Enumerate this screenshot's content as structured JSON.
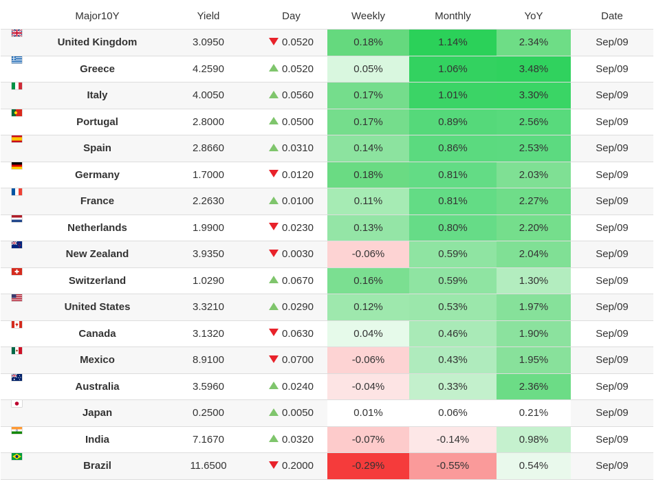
{
  "table": {
    "headers": {
      "name": "Major10Y",
      "yield": "Yield",
      "day": "Day",
      "weekly": "Weekly",
      "monthly": "Monthly",
      "yoy": "YoY",
      "date": "Date"
    },
    "rows": [
      {
        "flag": "gb",
        "name": "United Kingdom",
        "yield": "3.0950",
        "day_dir": "down",
        "day": "0.0520",
        "weekly": "0.18%",
        "monthly": "1.14%",
        "yoy": "2.34%",
        "date": "Sep/09",
        "colors": {
          "weekly": "#65d97e",
          "monthly": "#2bd159",
          "yoy": "#6edd86"
        }
      },
      {
        "flag": "gr",
        "name": "Greece",
        "yield": "4.2590",
        "day_dir": "up",
        "day": "0.0520",
        "weekly": "0.05%",
        "monthly": "1.06%",
        "yoy": "3.48%",
        "date": "Sep/09",
        "colors": {
          "weekly": "#d9f7df",
          "monthly": "#33d260",
          "yoy": "#30d25e"
        }
      },
      {
        "flag": "it",
        "name": "Italy",
        "yield": "4.0050",
        "day_dir": "up",
        "day": "0.0560",
        "weekly": "0.17%",
        "monthly": "1.01%",
        "yoy": "3.30%",
        "date": "Sep/09",
        "colors": {
          "weekly": "#75dd8c",
          "monthly": "#3bd466",
          "yoy": "#3ad565"
        }
      },
      {
        "flag": "pt",
        "name": "Portugal",
        "yield": "2.8000",
        "day_dir": "up",
        "day": "0.0500",
        "weekly": "0.17%",
        "monthly": "0.89%",
        "yoy": "2.56%",
        "date": "Sep/09",
        "colors": {
          "weekly": "#75dd8c",
          "monthly": "#55d97a",
          "yoy": "#58da7c"
        }
      },
      {
        "flag": "es",
        "name": "Spain",
        "yield": "2.8660",
        "day_dir": "up",
        "day": "0.0310",
        "weekly": "0.14%",
        "monthly": "0.86%",
        "yoy": "2.53%",
        "date": "Sep/09",
        "colors": {
          "weekly": "#8ce39f",
          "monthly": "#5bda7f",
          "yoy": "#5cda80"
        }
      },
      {
        "flag": "de",
        "name": "Germany",
        "yield": "1.7000",
        "day_dir": "down",
        "day": "0.0120",
        "weekly": "0.18%",
        "monthly": "0.81%",
        "yoy": "2.03%",
        "date": "Sep/09",
        "colors": {
          "weekly": "#6adb83",
          "monthly": "#63dc85",
          "yoy": "#7fe094"
        }
      },
      {
        "flag": "fr",
        "name": "France",
        "yield": "2.2630",
        "day_dir": "up",
        "day": "0.0100",
        "weekly": "0.11%",
        "monthly": "0.81%",
        "yoy": "2.27%",
        "date": "Sep/09",
        "colors": {
          "weekly": "#a6ebb4",
          "monthly": "#63dc85",
          "yoy": "#6fdd89"
        }
      },
      {
        "flag": "nl",
        "name": "Netherlands",
        "yield": "1.9900",
        "day_dir": "down",
        "day": "0.0230",
        "weekly": "0.13%",
        "monthly": "0.80%",
        "yoy": "2.20%",
        "date": "Sep/09",
        "colors": {
          "weekly": "#94e5a6",
          "monthly": "#66dc87",
          "yoy": "#75de8c"
        }
      },
      {
        "flag": "nz",
        "name": "New Zealand",
        "yield": "3.9350",
        "day_dir": "down",
        "day": "0.0030",
        "weekly": "-0.06%",
        "monthly": "0.59%",
        "yoy": "2.04%",
        "date": "Sep/09",
        "colors": {
          "weekly": "#fdd3d3",
          "monthly": "#8fe4a2",
          "yoy": "#80e095"
        }
      },
      {
        "flag": "ch",
        "name": "Switzerland",
        "yield": "1.0290",
        "day_dir": "up",
        "day": "0.0670",
        "weekly": "0.16%",
        "monthly": "0.59%",
        "yoy": "1.30%",
        "date": "Sep/09",
        "colors": {
          "weekly": "#7bdf91",
          "monthly": "#8fe4a2",
          "yoy": "#b3edbf"
        }
      },
      {
        "flag": "us",
        "name": "United States",
        "yield": "3.3210",
        "day_dir": "up",
        "day": "0.0290",
        "weekly": "0.12%",
        "monthly": "0.53%",
        "yoy": "1.97%",
        "date": "Sep/09",
        "colors": {
          "weekly": "#9ee8ad",
          "monthly": "#9be7ab",
          "yoy": "#86e19a"
        }
      },
      {
        "flag": "ca",
        "name": "Canada",
        "yield": "3.1320",
        "day_dir": "down",
        "day": "0.0630",
        "weekly": "0.04%",
        "monthly": "0.46%",
        "yoy": "1.90%",
        "date": "Sep/09",
        "colors": {
          "weekly": "#e6faea",
          "monthly": "#a9eab7",
          "yoy": "#8be29e"
        }
      },
      {
        "flag": "mx",
        "name": "Mexico",
        "yield": "8.9100",
        "day_dir": "down",
        "day": "0.0700",
        "weekly": "-0.06%",
        "monthly": "0.43%",
        "yoy": "1.95%",
        "date": "Sep/09",
        "colors": {
          "weekly": "#fdd3d3",
          "monthly": "#afebbd",
          "yoy": "#88e19b"
        }
      },
      {
        "flag": "au",
        "name": "Australia",
        "yield": "3.5960",
        "day_dir": "up",
        "day": "0.0240",
        "weekly": "-0.04%",
        "monthly": "0.33%",
        "yoy": "2.36%",
        "date": "Sep/09",
        "colors": {
          "weekly": "#fde4e4",
          "monthly": "#c3f0cc",
          "yoy": "#6cdc86"
        }
      },
      {
        "flag": "jp",
        "name": "Japan",
        "yield": "0.2500",
        "day_dir": "up",
        "day": "0.0050",
        "weekly": "0.01%",
        "monthly": "0.06%",
        "yoy": "0.21%",
        "date": "Sep/09",
        "colors": {
          "weekly": "#ffffff",
          "monthly": "#ffffff",
          "yoy": "#ffffff"
        }
      },
      {
        "flag": "in",
        "name": "India",
        "yield": "7.1670",
        "day_dir": "up",
        "day": "0.0320",
        "weekly": "-0.07%",
        "monthly": "-0.14%",
        "yoy": "0.98%",
        "date": "Sep/09",
        "colors": {
          "weekly": "#fdcbcb",
          "monthly": "#fde7e7",
          "yoy": "#c5f1ce"
        }
      },
      {
        "flag": "br",
        "name": "Brazil",
        "yield": "11.6500",
        "day_dir": "down",
        "day": "0.2000",
        "weekly": "-0.29%",
        "monthly": "-0.55%",
        "yoy": "0.54%",
        "date": "Sep/09",
        "colors": {
          "weekly": "#f53b3b",
          "monthly": "#fa9a9a",
          "yoy": "#e9f9ec"
        }
      }
    ]
  }
}
